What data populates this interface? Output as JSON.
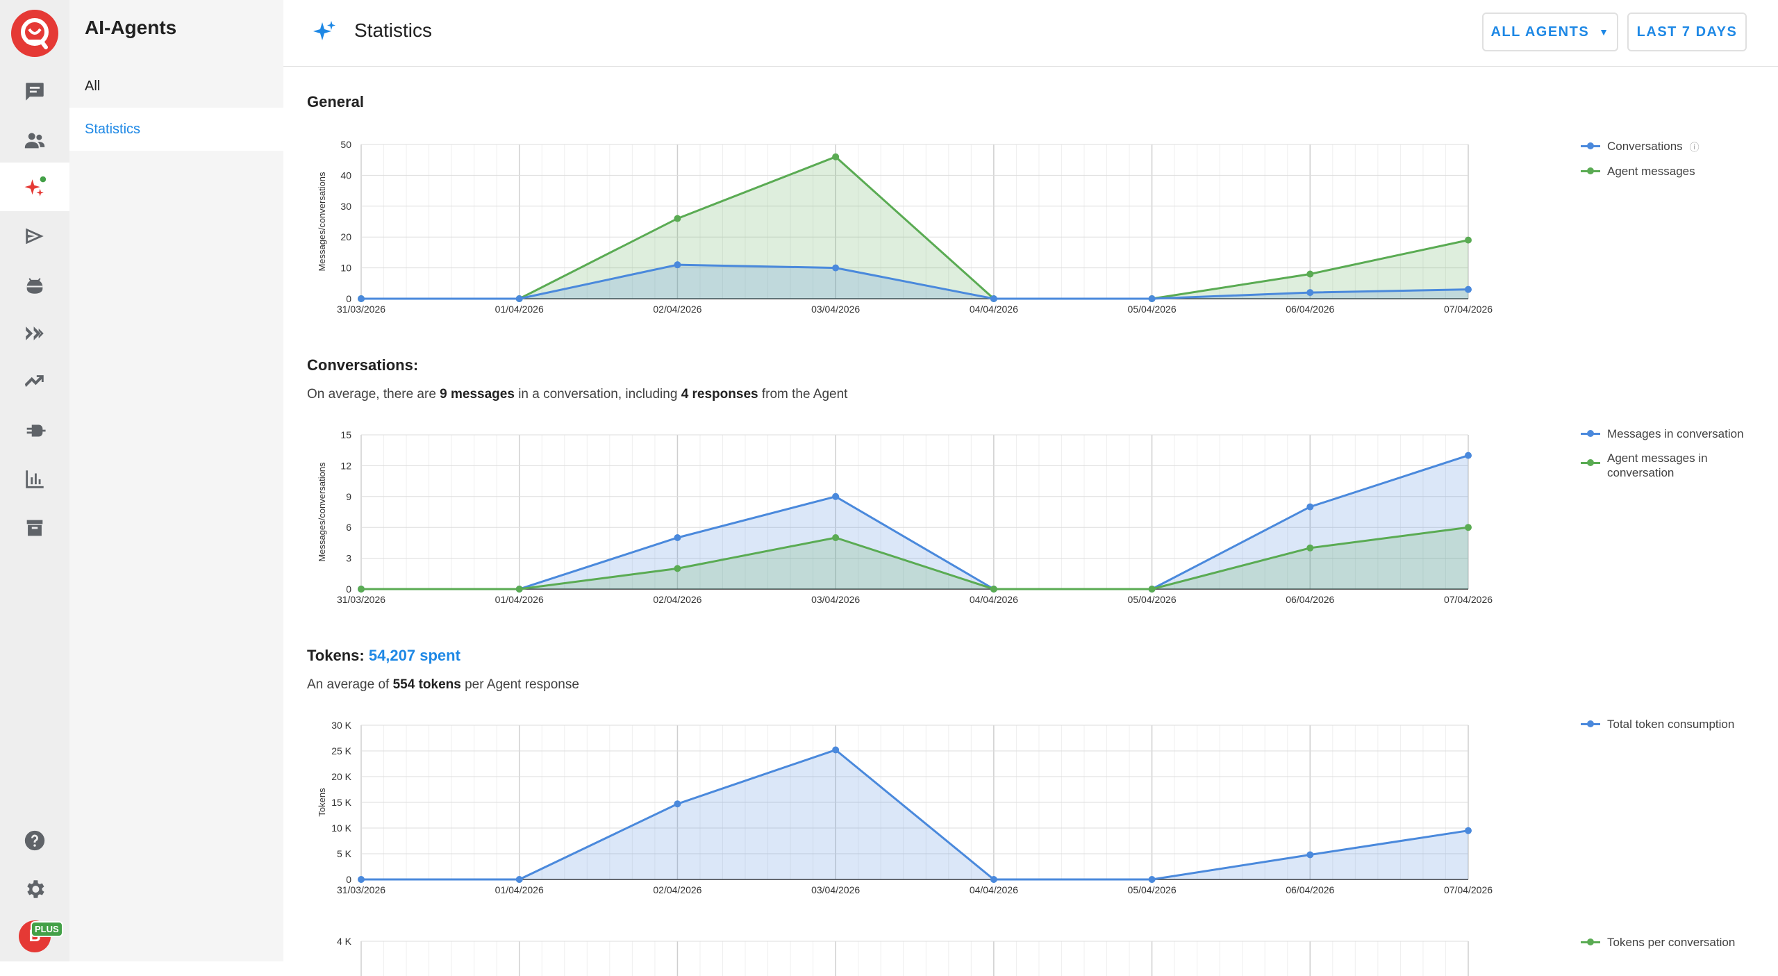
{
  "app": {
    "sidebar_title": "AI-Agents",
    "nav": [
      {
        "label": "All"
      },
      {
        "label": "Statistics"
      }
    ],
    "page_title": "Statistics",
    "filters": {
      "agents": "ALL AGENTS",
      "period": "LAST 7 DAYS"
    },
    "user": {
      "initial": "B",
      "badge": "PLUS"
    }
  },
  "colors": {
    "blue": "#4a89dc",
    "green": "#5aab53",
    "accent": "#1e88e5",
    "brand": "#e53935"
  },
  "rail_icons": [
    "chat-icon",
    "contacts-icon",
    "ai-agents-icon",
    "campaigns-icon",
    "bots-icon",
    "automation-icon",
    "analytics-icon",
    "integrations-icon",
    "reports-icon",
    "archive-icon",
    "help-icon",
    "settings-icon"
  ],
  "sections": {
    "general": {
      "title": "General"
    },
    "conversations": {
      "title": "Conversations:",
      "desc_1": "On average, there are ",
      "desc_bold_1": "9 messages",
      "desc_2": " in a conversation, including ",
      "desc_bold_2": "4 responses",
      "desc_3": " from the Agent"
    },
    "tokens": {
      "title": "Tokens: ",
      "spent": "54,207 spent",
      "desc_1": "An average of ",
      "desc_bold_1": "554 tokens",
      "desc_2": " per Agent response"
    }
  },
  "chart_data": [
    {
      "type": "area",
      "ylabel": "Messages/conversations",
      "categories": [
        "31/03/2026",
        "01/04/2026",
        "02/04/2026",
        "03/04/2026",
        "04/04/2026",
        "05/04/2026",
        "06/04/2026",
        "07/04/2026"
      ],
      "ylim": [
        0,
        50
      ],
      "yticks": [
        "0",
        "10",
        "20",
        "30",
        "40",
        "50"
      ],
      "yticks_values": [
        0,
        10,
        20,
        30,
        40,
        50
      ],
      "series": [
        {
          "name": "Conversations",
          "color": "#4a89dc",
          "values": [
            0,
            0,
            11,
            10,
            0,
            0,
            2,
            3
          ],
          "info": true
        },
        {
          "name": "Agent messages",
          "color": "#5aab53",
          "values": [
            0,
            0,
            26,
            46,
            0,
            0,
            8,
            19
          ]
        }
      ]
    },
    {
      "type": "area",
      "ylabel": "Messages/conversations",
      "categories": [
        "31/03/2026",
        "01/04/2026",
        "02/04/2026",
        "03/04/2026",
        "04/04/2026",
        "05/04/2026",
        "06/04/2026",
        "07/04/2026"
      ],
      "ylim": [
        0,
        15
      ],
      "yticks": [
        "0",
        "3",
        "6",
        "9",
        "12",
        "15"
      ],
      "yticks_values": [
        0,
        3,
        6,
        9,
        12,
        15
      ],
      "series": [
        {
          "name": "Messages in conversation",
          "color": "#4a89dc",
          "values": [
            0,
            0,
            5,
            9,
            0,
            0,
            8,
            13
          ]
        },
        {
          "name": "Agent messages in conversation",
          "color": "#5aab53",
          "values": [
            0,
            0,
            2,
            5,
            0,
            0,
            4,
            6
          ]
        }
      ]
    },
    {
      "type": "area",
      "ylabel": "Tokens",
      "categories": [
        "31/03/2026",
        "01/04/2026",
        "02/04/2026",
        "03/04/2026",
        "04/04/2026",
        "05/04/2026",
        "06/04/2026",
        "07/04/2026"
      ],
      "ylim": [
        0,
        30000
      ],
      "yticks": [
        "0",
        "5 K",
        "10 K",
        "15 K",
        "20 K",
        "25 K",
        "30 K"
      ],
      "yticks_values": [
        0,
        5000,
        10000,
        15000,
        20000,
        25000,
        30000
      ],
      "series": [
        {
          "name": "Total token consumption",
          "color": "#4a89dc",
          "values": [
            0,
            0,
            14700,
            25200,
            0,
            0,
            4800,
            9500
          ]
        }
      ]
    },
    {
      "type": "area",
      "ylabel": "",
      "categories": [],
      "ylim": [
        0,
        4000
      ],
      "yticks": [
        "4 K"
      ],
      "yticks_values": [
        4000
      ],
      "series": [
        {
          "name": "Tokens per conversation",
          "color": "#5aab53",
          "values": []
        }
      ]
    }
  ]
}
